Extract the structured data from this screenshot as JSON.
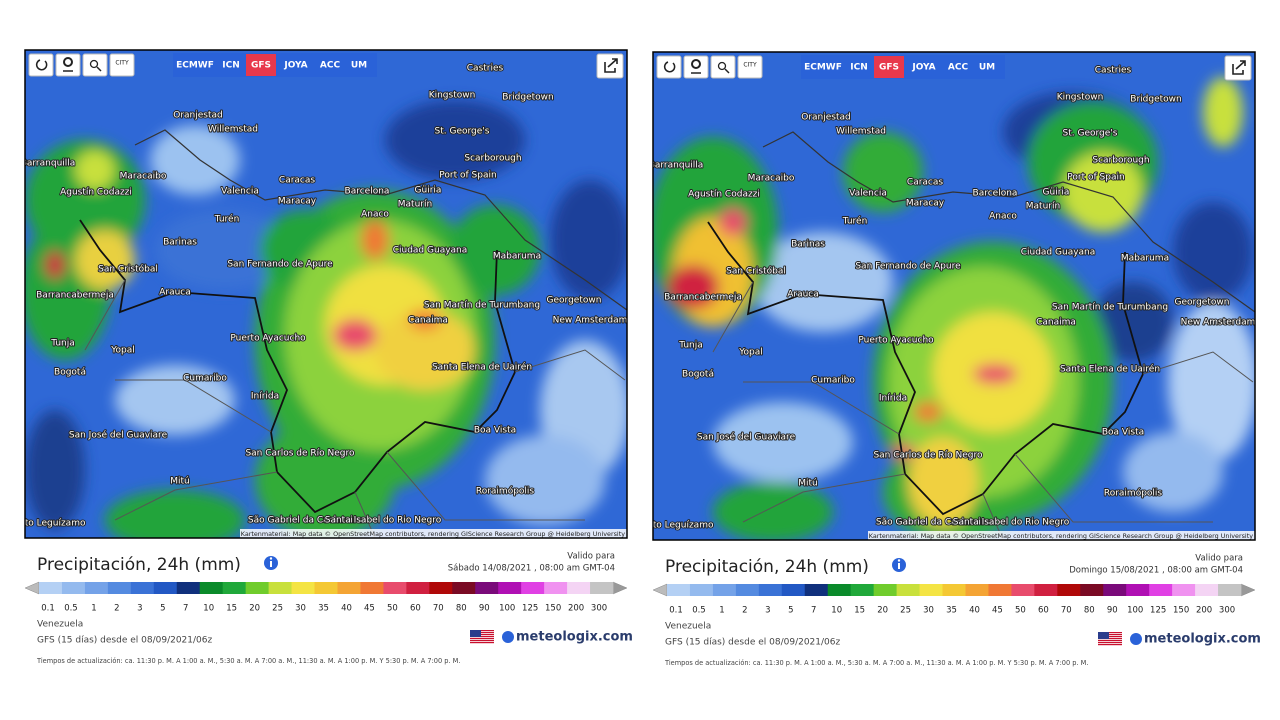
{
  "panels": [
    {
      "toolbar": {
        "city_button": "CITY",
        "models": [
          "ECMWF",
          "ICN",
          "GFS",
          "JOYA",
          "ACC",
          "UM"
        ],
        "active_model": "GFS"
      },
      "map": {
        "cities": [
          "Castries",
          "Kingstown",
          "Bridgetown",
          "Oranjestad",
          "Willemstad",
          "St. George's",
          "Barranquilla",
          "Scarborough",
          "Maracaibo",
          "Port of Spain",
          "Caracas",
          "Valencia",
          "Barcelona",
          "Güiria",
          "Agustín Codazzi",
          "Maracay",
          "Maturín",
          "Turén",
          "Anaco",
          "Barinas",
          "Ciudad Guayana",
          "Mabaruma",
          "San Fernando de Apure",
          "San Cristóbal",
          "Barrancabermeja",
          "Arauca",
          "San Martín de Turumbang",
          "Georgetown",
          "Canaima",
          "New Amsterdam",
          "Tunja",
          "Yopal",
          "Puerto Ayacucho",
          "Bogotá",
          "Cumaribo",
          "Santa Elena de Uairén",
          "Inírida",
          "San José del Guaviare",
          "Boa Vista",
          "San Carlos de Río Negro",
          "Mitú",
          "Roraimópolis",
          "São Gabriel da Cachoeira",
          "Santa Isabel do Rio Negro",
          "Puerto Leguízamo"
        ],
        "attribution": "Kartenmaterial: Map data © OpenStreetMap contributors, rendering GIScience Research Group @ Heidelberg University"
      },
      "legend": {
        "title": "Precipitación, 24h (mm)",
        "valid_label": "Valido para",
        "valid_time": "Sábado 14/08/2021 , 08:00 am GMT-04",
        "scale": [
          {
            "label": "0.1",
            "color": "#b4d0f4"
          },
          {
            "label": "0.5",
            "color": "#94baee"
          },
          {
            "label": "1",
            "color": "#74a2e8"
          },
          {
            "label": "2",
            "color": "#548ae0"
          },
          {
            "label": "3",
            "color": "#3a72d6"
          },
          {
            "label": "5",
            "color": "#2258c4"
          },
          {
            "label": "7",
            "color": "#10307c"
          },
          {
            "label": "10",
            "color": "#0a8a2a"
          },
          {
            "label": "15",
            "color": "#20a83a"
          },
          {
            "label": "20",
            "color": "#70cc2c"
          },
          {
            "label": "25",
            "color": "#c8e03c"
          },
          {
            "label": "30",
            "color": "#f4e444"
          },
          {
            "label": "35",
            "color": "#f4c834"
          },
          {
            "label": "40",
            "color": "#f4a434"
          },
          {
            "label": "45",
            "color": "#f07834"
          },
          {
            "label": "50",
            "color": "#e84c6c"
          },
          {
            "label": "60",
            "color": "#d02040"
          },
          {
            "label": "70",
            "color": "#b00808"
          },
          {
            "label": "80",
            "color": "#7a0a24"
          },
          {
            "label": "90",
            "color": "#7a0a7a"
          },
          {
            "label": "100",
            "color": "#b010b4"
          },
          {
            "label": "125",
            "color": "#e040e4"
          },
          {
            "label": "150",
            "color": "#f092f0"
          },
          {
            "label": "200",
            "color": "#f4d4f4"
          },
          {
            "label": "300",
            "color": "#c4c4c4"
          }
        ]
      },
      "footer": {
        "region": "Venezuela",
        "run": "GFS (15 días) desde el 08/09/2021/06z",
        "brand": "meteologix.com",
        "update_times": "Tiempos de actualización: ca. 11:30 p. M. A 1:00 a. M., 5:30 a. M. A 7:00 a. M., 11:30 a. M. A 1:00 p. M. Y 5:30 p. M. A 7:00 p. M."
      }
    },
    {
      "toolbar": {
        "city_button": "CITY",
        "models": [
          "ECMWF",
          "ICN",
          "GFS",
          "JOYA",
          "ACC",
          "UM"
        ],
        "active_model": "GFS"
      },
      "map": {
        "cities": [
          "Castries",
          "Kingstown",
          "Bridgetown",
          "Oranjestad",
          "Willemstad",
          "St. George's",
          "Barranquilla",
          "Scarborough",
          "Maracaibo",
          "Port of Spain",
          "Caracas",
          "Valencia",
          "Barcelona",
          "Güiria",
          "Agustín Codazzi",
          "Maracay",
          "Maturín",
          "Turén",
          "Anaco",
          "Barinas",
          "Ciudad Guayana",
          "Mabaruma",
          "San Fernando de Apure",
          "San Cristóbal",
          "Barrancabermeja",
          "Arauca",
          "San Martín de Turumbang",
          "Georgetown",
          "Canaima",
          "New Amsterdam",
          "Tunja",
          "Yopal",
          "Puerto Ayacucho",
          "Bogotá",
          "Cumaribo",
          "Santa Elena de Uairén",
          "Inírida",
          "San José del Guaviare",
          "Boa Vista",
          "San Carlos de Río Negro",
          "Mitú",
          "Roraimópolis",
          "São Gabriel da Cachoeira",
          "Santa Isabel do Rio Negro",
          "Puerto Leguízamo"
        ],
        "attribution": "Kartenmaterial: Map data © OpenStreetMap contributors, rendering GIScience Research Group @ Heidelberg University"
      },
      "legend": {
        "title": "Precipitación, 24h (mm)",
        "valid_label": "Valido para",
        "valid_time": "Domingo 15/08/2021 , 08:00 am GMT-04",
        "scale": [
          {
            "label": "0.1",
            "color": "#b4d0f4"
          },
          {
            "label": "0.5",
            "color": "#94baee"
          },
          {
            "label": "1",
            "color": "#74a2e8"
          },
          {
            "label": "2",
            "color": "#548ae0"
          },
          {
            "label": "3",
            "color": "#3a72d6"
          },
          {
            "label": "5",
            "color": "#2258c4"
          },
          {
            "label": "7",
            "color": "#10307c"
          },
          {
            "label": "10",
            "color": "#0a8a2a"
          },
          {
            "label": "15",
            "color": "#20a83a"
          },
          {
            "label": "20",
            "color": "#70cc2c"
          },
          {
            "label": "25",
            "color": "#c8e03c"
          },
          {
            "label": "30",
            "color": "#f4e444"
          },
          {
            "label": "35",
            "color": "#f4c834"
          },
          {
            "label": "40",
            "color": "#f4a434"
          },
          {
            "label": "45",
            "color": "#f07834"
          },
          {
            "label": "50",
            "color": "#e84c6c"
          },
          {
            "label": "60",
            "color": "#d02040"
          },
          {
            "label": "70",
            "color": "#b00808"
          },
          {
            "label": "80",
            "color": "#7a0a24"
          },
          {
            "label": "90",
            "color": "#7a0a7a"
          },
          {
            "label": "100",
            "color": "#b010b4"
          },
          {
            "label": "125",
            "color": "#e040e4"
          },
          {
            "label": "150",
            "color": "#f092f0"
          },
          {
            "label": "200",
            "color": "#f4d4f4"
          },
          {
            "label": "300",
            "color": "#c4c4c4"
          }
        ]
      },
      "footer": {
        "region": "Venezuela",
        "run": "GFS (15 días) desde el 08/09/2021/06z",
        "brand": "meteologix.com",
        "update_times": "Tiempos de actualización: ca. 11:30 p. M. A 1:00 a. M., 5:30 a. M. A 7:00 a. M., 11:30 a. M. A 1:00 p. M. Y 5:30 p. M. A 7:00 p. M."
      }
    }
  ]
}
